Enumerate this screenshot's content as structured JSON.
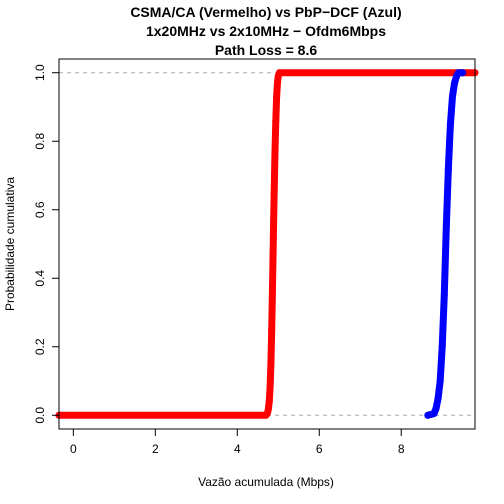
{
  "chart_data": {
    "type": "line",
    "title_lines": [
      "CSMA/CA (Vermelho) vs PbP−DCF (Azul)",
      "1x20MHz vs 2x10MHz − Ofdm6Mbps",
      "Path Loss = 8.6"
    ],
    "xlabel": "Vazão acumulada (Mbps)",
    "ylabel": "Probabilidade cumulativa",
    "xlim": [
      -0.35,
      9.8
    ],
    "ylim": [
      -0.04,
      1.04
    ],
    "x_ticks": [
      0,
      2,
      4,
      6,
      8
    ],
    "x_tick_labels": [
      "0",
      "2",
      "4",
      "6",
      "8"
    ],
    "y_ticks": [
      0.0,
      0.2,
      0.4,
      0.6,
      0.8,
      1.0
    ],
    "y_tick_labels": [
      "0.0",
      "0.2",
      "0.4",
      "0.6",
      "0.8",
      "1.0"
    ],
    "reference_lines": [
      0,
      1
    ],
    "series": [
      {
        "color": "#ff0000",
        "points": [
          [
            -0.35,
            0.0
          ],
          [
            4.7,
            0.0
          ],
          [
            4.72,
            0.003
          ],
          [
            4.74,
            0.008
          ],
          [
            4.76,
            0.02
          ],
          [
            4.78,
            0.04
          ],
          [
            4.8,
            0.08
          ],
          [
            4.82,
            0.15
          ],
          [
            4.84,
            0.25
          ],
          [
            4.86,
            0.38
          ],
          [
            4.88,
            0.52
          ],
          [
            4.9,
            0.65
          ],
          [
            4.92,
            0.77
          ],
          [
            4.94,
            0.86
          ],
          [
            4.96,
            0.93
          ],
          [
            4.98,
            0.97
          ],
          [
            5.0,
            0.99
          ],
          [
            5.03,
            1.0
          ],
          [
            9.8,
            1.0
          ]
        ]
      },
      {
        "color": "#0000ff",
        "points": [
          [
            8.65,
            0.0
          ],
          [
            8.8,
            0.005
          ],
          [
            8.85,
            0.02
          ],
          [
            8.9,
            0.05
          ],
          [
            8.95,
            0.1
          ],
          [
            9.0,
            0.2
          ],
          [
            9.05,
            0.35
          ],
          [
            9.1,
            0.55
          ],
          [
            9.15,
            0.72
          ],
          [
            9.2,
            0.85
          ],
          [
            9.25,
            0.93
          ],
          [
            9.3,
            0.97
          ],
          [
            9.35,
            0.99
          ],
          [
            9.4,
            1.0
          ],
          [
            9.5,
            1.0
          ]
        ]
      }
    ]
  }
}
